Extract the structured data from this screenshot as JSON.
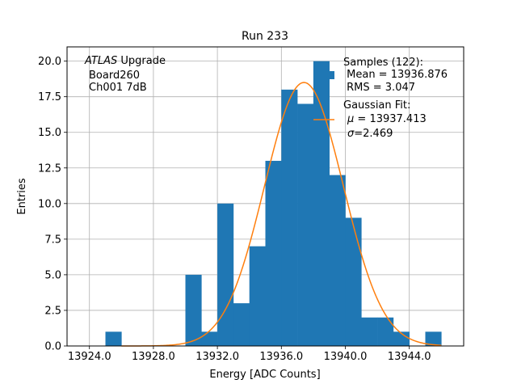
{
  "chart_data": {
    "type": "bar",
    "title": "Run 233",
    "xlabel": "Energy [ADC Counts]",
    "ylabel": "Entries",
    "xlim": [
      13922.6,
      13947.4
    ],
    "ylim": [
      0,
      21
    ],
    "grid": true,
    "x_ticks": [
      "13924.0",
      "13928.0",
      "13932.0",
      "13936.0",
      "13940.0",
      "13944.0"
    ],
    "x_tick_values": [
      13924,
      13928,
      13932,
      13936,
      13940,
      13944
    ],
    "y_ticks": [
      "0.0",
      "2.5",
      "5.0",
      "7.5",
      "10.0",
      "12.5",
      "15.0",
      "17.5",
      "20.0"
    ],
    "y_tick_values": [
      0,
      2.5,
      5,
      7.5,
      10,
      12.5,
      15,
      17.5,
      20
    ],
    "bin_width": 1,
    "bins": [
      {
        "x": 13925,
        "value": 1
      },
      {
        "x": 13930,
        "value": 5
      },
      {
        "x": 13931,
        "value": 1
      },
      {
        "x": 13932,
        "value": 10
      },
      {
        "x": 13933,
        "value": 3
      },
      {
        "x": 13934,
        "value": 7
      },
      {
        "x": 13935,
        "value": 13
      },
      {
        "x": 13936,
        "value": 18
      },
      {
        "x": 13937,
        "value": 17
      },
      {
        "x": 13938,
        "value": 20
      },
      {
        "x": 13939,
        "value": 12
      },
      {
        "x": 13940,
        "value": 9
      },
      {
        "x": 13941,
        "value": 2
      },
      {
        "x": 13942,
        "value": 2
      },
      {
        "x": 13943,
        "value": 1
      },
      {
        "x": 13945,
        "value": 1
      }
    ],
    "series": [
      {
        "name": "Samples (122):",
        "kind": "histogram",
        "color": "#1f77b4"
      },
      {
        "name": "Gaussian Fit:",
        "kind": "line",
        "color": "#ff7f0e",
        "mu": 13937.413,
        "sigma": 2.469,
        "amplitude": 18.5
      }
    ],
    "annotation": {
      "line1_italic": "ATLAS",
      "line1_rest": " Upgrade",
      "line2": "Board260",
      "line3": "Ch001 7dB"
    },
    "legend": {
      "placement": "top-right",
      "hist_lines": [
        "Samples (122):",
        " Mean = 13936.876",
        " RMS = 3.047"
      ],
      "fit_title": "Gaussian Fit:",
      "fit_mu_symbol": "μ",
      "fit_mu_rest": " = 13937.413",
      "fit_sigma_symbol": "σ",
      "fit_sigma_rest": "=2.469"
    }
  }
}
